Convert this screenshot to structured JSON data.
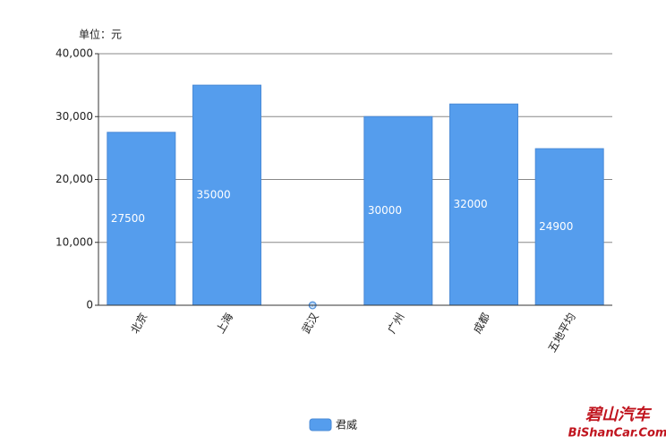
{
  "chart_data": {
    "type": "bar",
    "unit_label": "单位：元",
    "categories": [
      "北京",
      "上海",
      "武汉",
      "广州",
      "成都",
      "五地平均"
    ],
    "series": [
      {
        "name": "君威",
        "color": "#559ded",
        "values": [
          27500,
          35000,
          0,
          30000,
          32000,
          24900
        ]
      }
    ],
    "ylim": [
      0,
      40000
    ],
    "yticks": [
      0,
      {
        "value": 10000,
        "label": "10,000"
      },
      {
        "value": 20000,
        "label": "20,000"
      },
      {
        "value": 30000,
        "label": "30,000"
      },
      {
        "value": 40000,
        "label": "40,000"
      }
    ],
    "grid": true,
    "legend": "bottom",
    "watermark": [
      "碧山汽车",
      "BiShanCar.Com"
    ]
  }
}
